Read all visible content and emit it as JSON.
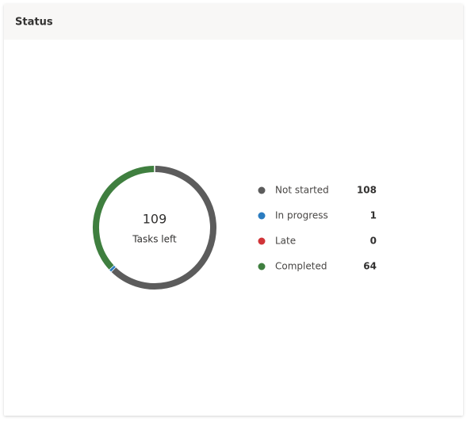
{
  "chart_data": {
    "type": "donut",
    "title": "Status",
    "center_value": 109,
    "center_label": "Tasks left",
    "categories": [
      "Not started",
      "In progress",
      "Late",
      "Completed"
    ],
    "values": [
      108,
      1,
      0,
      64
    ],
    "colors": [
      "#5c5c5c",
      "#2b7cc0",
      "#d13438",
      "#3f7f3f"
    ]
  }
}
